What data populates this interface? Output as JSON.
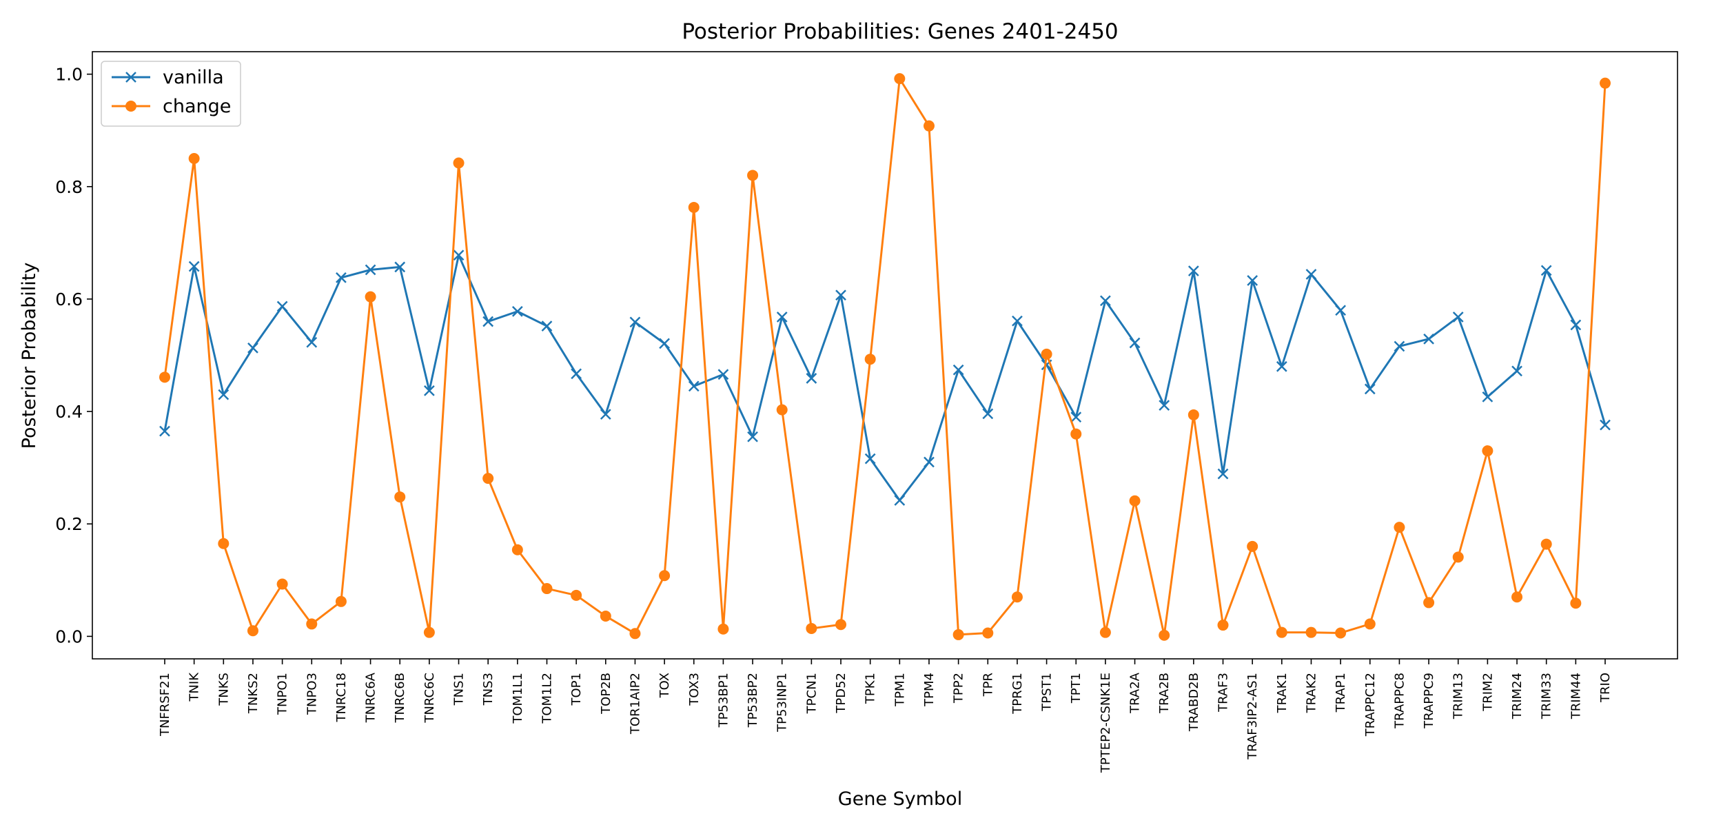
{
  "chart_data": {
    "type": "line",
    "title": "Posterior Probabilities: Genes 2401-2450",
    "xlabel": "Gene Symbol",
    "ylabel": "Posterior Probability",
    "ylim": [
      -0.04,
      1.04
    ],
    "yticks": [
      0.0,
      0.2,
      0.4,
      0.6,
      0.8,
      1.0
    ],
    "ytick_labels": [
      "0.0",
      "0.2",
      "0.4",
      "0.6",
      "0.8",
      "1.0"
    ],
    "grid": false,
    "legend": "top-left",
    "categories": [
      "TNFRSF21",
      "TNIK",
      "TNKS",
      "TNKS2",
      "TNPO1",
      "TNPO3",
      "TNRC18",
      "TNRC6A",
      "TNRC6B",
      "TNRC6C",
      "TNS1",
      "TNS3",
      "TOM1L1",
      "TOM1L2",
      "TOP1",
      "TOP2B",
      "TOR1AIP2",
      "TOX",
      "TOX3",
      "TP53BP1",
      "TP53BP2",
      "TP53INP1",
      "TPCN1",
      "TPD52",
      "TPK1",
      "TPM1",
      "TPM4",
      "TPP2",
      "TPR",
      "TPRG1",
      "TPST1",
      "TPT1",
      "TPTEP2-CSNK1E",
      "TRA2A",
      "TRA2B",
      "TRABD2B",
      "TRAF3",
      "TRAF3IP2-AS1",
      "TRAK1",
      "TRAK2",
      "TRAP1",
      "TRAPPC12",
      "TRAPPC8",
      "TRAPPC9",
      "TRIM13",
      "TRIM2",
      "TRIM24",
      "TRIM33",
      "TRIM44",
      "TRIO"
    ],
    "series": [
      {
        "name": "vanilla",
        "color": "#1f77b4",
        "marker": "x",
        "values": [
          0.365,
          0.658,
          0.43,
          0.513,
          0.587,
          0.523,
          0.638,
          0.652,
          0.657,
          0.437,
          0.678,
          0.56,
          0.578,
          0.552,
          0.467,
          0.395,
          0.559,
          0.521,
          0.445,
          0.466,
          0.355,
          0.568,
          0.459,
          0.607,
          0.316,
          0.242,
          0.31,
          0.474,
          0.396,
          0.561,
          0.483,
          0.39,
          0.597,
          0.522,
          0.411,
          0.65,
          0.289,
          0.633,
          0.48,
          0.644,
          0.58,
          0.44,
          0.516,
          0.529,
          0.568,
          0.426,
          0.472,
          0.651,
          0.554,
          0.376
        ]
      },
      {
        "name": "change",
        "color": "#ff7f0e",
        "marker": "o",
        "values": [
          0.461,
          0.85,
          0.165,
          0.01,
          0.093,
          0.022,
          0.062,
          0.604,
          0.248,
          0.007,
          0.842,
          0.281,
          0.154,
          0.085,
          0.073,
          0.036,
          0.005,
          0.108,
          0.763,
          0.013,
          0.82,
          0.403,
          0.014,
          0.021,
          0.493,
          0.992,
          0.908,
          0.003,
          0.006,
          0.07,
          0.502,
          0.36,
          0.007,
          0.241,
          0.002,
          0.394,
          0.02,
          0.16,
          0.007,
          0.007,
          0.006,
          0.022,
          0.194,
          0.06,
          0.141,
          0.33,
          0.07,
          0.164,
          0.059,
          0.984
        ]
      }
    ]
  }
}
